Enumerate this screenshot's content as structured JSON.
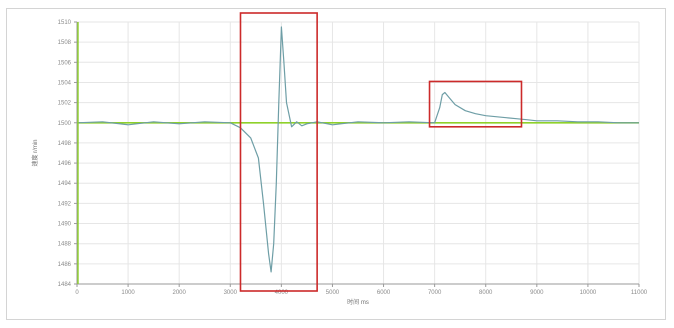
{
  "chart_data": {
    "type": "line",
    "title": "",
    "xlabel": "时间 ms",
    "ylabel": "速度 r/min",
    "xlim": [
      0,
      11000
    ],
    "ylim": [
      1484,
      1510
    ],
    "x_ticks": [
      0,
      1000,
      2000,
      3000,
      4000,
      5000,
      6000,
      7000,
      8000,
      9000,
      10000,
      11000
    ],
    "y_ticks": [
      1484,
      1486,
      1488,
      1490,
      1492,
      1494,
      1496,
      1498,
      1500,
      1502,
      1504,
      1506,
      1508,
      1510
    ],
    "x_tick_labels": [
      "0",
      "1000",
      "2000",
      "3000",
      "4000",
      "5000",
      "6000",
      "7000",
      "8000",
      "9000",
      "10000",
      "11000"
    ],
    "y_tick_labels": [
      "1484",
      "1486",
      "1488",
      "1490",
      "1492",
      "1494",
      "1496",
      "1498",
      "1500",
      "1502",
      "1504",
      "1506",
      "1508",
      "1510"
    ],
    "grid": true,
    "series": [
      {
        "color": "#6e9ea6",
        "x": [
          0,
          500,
          1000,
          1500,
          2000,
          2500,
          3000,
          3200,
          3400,
          3550,
          3650,
          3750,
          3800,
          3850,
          3900,
          3950,
          4000,
          4050,
          4100,
          4200,
          4300,
          4400,
          4500,
          4600,
          4700,
          5000,
          5500,
          6000,
          6500,
          7000,
          7100,
          7150,
          7200,
          7300,
          7400,
          7600,
          7800,
          8000,
          8200,
          8400,
          8600,
          8800,
          9000,
          9400,
          9800,
          10200,
          10600,
          11000
        ],
        "y": [
          1500,
          1500.1,
          1499.8,
          1500.1,
          1499.9,
          1500.1,
          1500,
          1499.5,
          1498.5,
          1496.5,
          1492,
          1487,
          1485.2,
          1488,
          1494,
          1502,
          1509.5,
          1506,
          1502,
          1499.6,
          1500.1,
          1499.7,
          1499.9,
          1500,
          1500.1,
          1499.8,
          1500.1,
          1500,
          1500.1,
          1500,
          1501.5,
          1502.8,
          1503,
          1502.4,
          1501.8,
          1501.2,
          1500.9,
          1500.7,
          1500.6,
          1500.5,
          1500.4,
          1500.3,
          1500.2,
          1500.2,
          1500.1,
          1500.1,
          1500,
          1500
        ]
      },
      {
        "color": "#8fd12a",
        "x": [
          0,
          11000
        ],
        "y": [
          1500,
          1500
        ]
      }
    ],
    "annotations": [
      {
        "type": "rect",
        "color": "#cc2a2a",
        "x": [
          3200,
          4700
        ],
        "y": [
          1484,
          1510
        ]
      },
      {
        "type": "rect",
        "color": "#cc2a2a",
        "x": [
          6900,
          8700
        ],
        "y": [
          1499.6,
          1504.1
        ]
      }
    ]
  }
}
